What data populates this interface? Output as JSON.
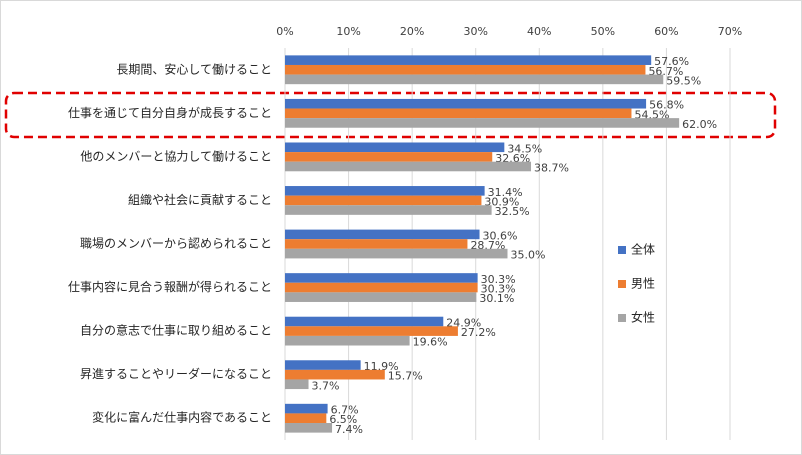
{
  "chart_data": {
    "type": "hbar",
    "categories": [
      "長期間、安心して働けること",
      "仕事を通じて自分自身が成長すること",
      "他のメンバーと協力して働けること",
      "組織や社会に貢献すること",
      "職場のメンバーから認められること",
      "仕事内容に見合う報酬が得られること",
      "自分の意志で仕事に取り組めること",
      "昇進することやリーダーになること",
      "変化に富んだ仕事内容であること"
    ],
    "series": [
      {
        "name": "全体",
        "color": "#4472c4",
        "values": [
          57.6,
          56.8,
          34.5,
          31.4,
          30.6,
          30.3,
          24.9,
          11.9,
          6.7
        ],
        "value_labels": [
          "57.6%",
          "56.8%",
          "34.5%",
          "31.4%",
          "30.6%",
          "30.3%",
          "24.9%",
          "11.9%",
          "6.7%"
        ]
      },
      {
        "name": "男性",
        "color": "#ed7d31",
        "values": [
          56.7,
          54.5,
          32.6,
          30.9,
          28.7,
          30.3,
          27.2,
          15.7,
          6.5
        ],
        "value_labels": [
          "56.7%",
          "54.5%",
          "32.6%",
          "30.9%",
          "28.7%",
          "30.3%",
          "27.2%",
          "15.7%",
          "6.5%"
        ]
      },
      {
        "name": "女性",
        "color": "#a5a5a5",
        "values": [
          59.5,
          62.0,
          38.7,
          32.5,
          35.0,
          30.1,
          19.6,
          3.7,
          7.4
        ],
        "value_labels": [
          "59.5%",
          "62.0%",
          "38.7%",
          "32.5%",
          "35.0%",
          "30.1%",
          "19.6%",
          "3.7%",
          "7.4%"
        ]
      }
    ],
    "xlim": [
      0,
      70
    ],
    "xticks": [
      {
        "value": 0,
        "label": "0%"
      },
      {
        "value": 10,
        "label": "10%"
      },
      {
        "value": 20,
        "label": "20%"
      },
      {
        "value": 30,
        "label": "30%"
      },
      {
        "value": 40,
        "label": "40%"
      },
      {
        "value": 50,
        "label": "50%"
      },
      {
        "value": 60,
        "label": "60%"
      },
      {
        "value": 70,
        "label": "70%"
      }
    ],
    "grid": true
  }
}
